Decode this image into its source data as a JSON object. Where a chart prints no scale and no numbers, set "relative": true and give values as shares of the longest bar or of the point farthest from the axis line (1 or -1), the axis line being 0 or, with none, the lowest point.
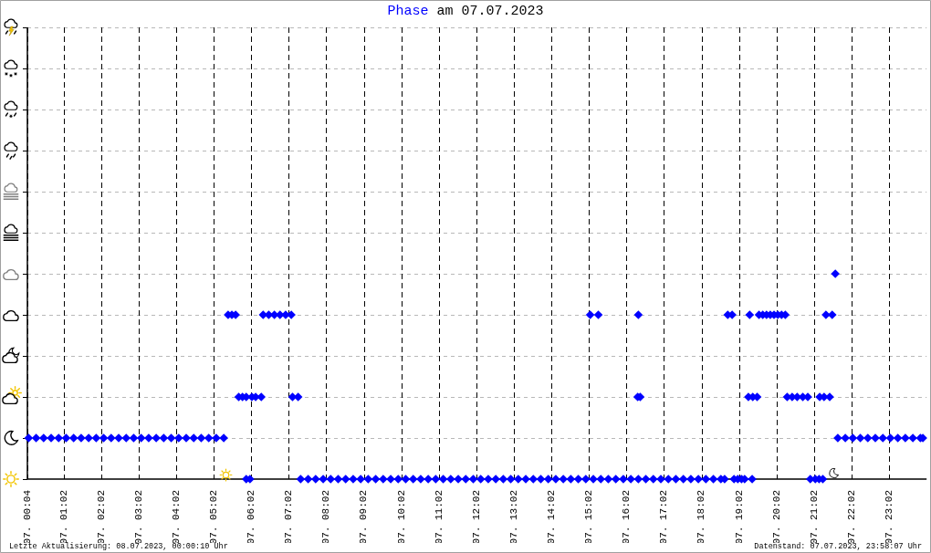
{
  "chart_data": {
    "type": "scatter",
    "title": "Phase am 07.07.2023",
    "annotations": [
      "Letzte Aktualisierung: 08.07.2023, 00:00:10 Uhr",
      "Datenstand: 07.07.2023, 23:58:07 Uhr"
    ],
    "relative": true,
    "color": "#0000ff",
    "marker": "diamond",
    "grid": true,
    "xlim": [
      "2023-07-07T00:04",
      "2023-07-08T00:02"
    ],
    "xticks": [
      {
        "value": "2023-07-07T00:04",
        "label": "07. 00:04"
      },
      {
        "value": "2023-07-07T01:02",
        "label": "07. 01:02"
      },
      {
        "value": "2023-07-07T02:02",
        "label": "07. 02:02"
      },
      {
        "value": "2023-07-07T03:02",
        "label": "07. 03:02"
      },
      {
        "value": "2023-07-07T04:02",
        "label": "07. 04:02"
      },
      {
        "value": "2023-07-07T05:02",
        "label": "07. 05:02"
      },
      {
        "value": "2023-07-07T06:02",
        "label": "07. 06:02"
      },
      {
        "value": "2023-07-07T07:02",
        "label": "07. 07:02"
      },
      {
        "value": "2023-07-07T08:02",
        "label": "07. 08:02"
      },
      {
        "value": "2023-07-07T09:02",
        "label": "07. 09:02"
      },
      {
        "value": "2023-07-07T10:02",
        "label": "07. 10:02"
      },
      {
        "value": "2023-07-07T11:02",
        "label": "07. 11:02"
      },
      {
        "value": "2023-07-07T12:02",
        "label": "07. 12:02"
      },
      {
        "value": "2023-07-07T13:02",
        "label": "07. 13:02"
      },
      {
        "value": "2023-07-07T14:02",
        "label": "07. 14:02"
      },
      {
        "value": "2023-07-07T15:02",
        "label": "07. 15:02"
      },
      {
        "value": "2023-07-07T16:02",
        "label": "07. 16:02"
      },
      {
        "value": "2023-07-07T17:02",
        "label": "07. 17:02"
      },
      {
        "value": "2023-07-07T18:02",
        "label": "07. 18:02"
      },
      {
        "value": "2023-07-07T19:02",
        "label": "07. 19:02"
      },
      {
        "value": "2023-07-07T20:02",
        "label": "07. 20:02"
      },
      {
        "value": "2023-07-07T21:02",
        "label": "07. 21:02"
      },
      {
        "value": "2023-07-07T22:02",
        "label": "07. 22:02"
      },
      {
        "value": "2023-07-07T23:02",
        "label": "07. 23:02"
      }
    ],
    "x": [
      "2023-07-07T00:06",
      "2023-07-07T00:18",
      "2023-07-07T00:30",
      "2023-07-07T00:42",
      "2023-07-07T00:54",
      "2023-07-07T01:06",
      "2023-07-07T01:18",
      "2023-07-07T01:30",
      "2023-07-07T01:42",
      "2023-07-07T01:54",
      "2023-07-07T02:06",
      "2023-07-07T02:18",
      "2023-07-07T02:30",
      "2023-07-07T02:42",
      "2023-07-07T02:54",
      "2023-07-07T03:06",
      "2023-07-07T03:18",
      "2023-07-07T03:30",
      "2023-07-07T03:42",
      "2023-07-07T03:54",
      "2023-07-07T04:06",
      "2023-07-07T04:18",
      "2023-07-07T04:30",
      "2023-07-07T04:42",
      "2023-07-07T04:54",
      "2023-07-07T05:06",
      "2023-07-07T05:18",
      "2023-07-07T05:25",
      "2023-07-07T05:31",
      "2023-07-07T05:37",
      "2023-07-07T05:42",
      "2023-07-07T05:48",
      "2023-07-07T05:54",
      "2023-07-07T05:54",
      "2023-07-07T06:00",
      "2023-07-07T06:03",
      "2023-07-07T06:09",
      "2023-07-07T06:18",
      "2023-07-07T06:21",
      "2023-07-07T06:30",
      "2023-07-07T06:39",
      "2023-07-07T06:48",
      "2023-07-07T06:57",
      "2023-07-07T07:06",
      "2023-07-07T07:08",
      "2023-07-07T07:17",
      "2023-07-07T07:21",
      "2023-07-07T07:33",
      "2023-07-07T07:45",
      "2023-07-07T07:57",
      "2023-07-07T08:09",
      "2023-07-07T08:21",
      "2023-07-07T08:33",
      "2023-07-07T08:45",
      "2023-07-07T08:57",
      "2023-07-07T09:09",
      "2023-07-07T09:21",
      "2023-07-07T09:33",
      "2023-07-07T09:45",
      "2023-07-07T09:57",
      "2023-07-07T10:09",
      "2023-07-07T10:21",
      "2023-07-07T10:33",
      "2023-07-07T10:45",
      "2023-07-07T10:57",
      "2023-07-07T11:09",
      "2023-07-07T11:21",
      "2023-07-07T11:33",
      "2023-07-07T11:45",
      "2023-07-07T11:57",
      "2023-07-07T12:09",
      "2023-07-07T12:21",
      "2023-07-07T12:33",
      "2023-07-07T12:45",
      "2023-07-07T12:57",
      "2023-07-07T13:09",
      "2023-07-07T13:21",
      "2023-07-07T13:33",
      "2023-07-07T13:45",
      "2023-07-07T13:57",
      "2023-07-07T14:09",
      "2023-07-07T14:21",
      "2023-07-07T14:33",
      "2023-07-07T14:45",
      "2023-07-07T14:57",
      "2023-07-07T15:04",
      "2023-07-07T15:09",
      "2023-07-07T15:17",
      "2023-07-07T15:21",
      "2023-07-07T15:33",
      "2023-07-07T15:45",
      "2023-07-07T15:57",
      "2023-07-07T16:09",
      "2023-07-07T16:20",
      "2023-07-07T16:21",
      "2023-07-07T16:21",
      "2023-07-07T16:24",
      "2023-07-07T16:33",
      "2023-07-07T16:45",
      "2023-07-07T16:57",
      "2023-07-07T17:09",
      "2023-07-07T17:21",
      "2023-07-07T17:33",
      "2023-07-07T17:45",
      "2023-07-07T17:57",
      "2023-07-07T18:09",
      "2023-07-07T18:21",
      "2023-07-07T18:33",
      "2023-07-07T18:39",
      "2023-07-07T18:44",
      "2023-07-07T18:51",
      "2023-07-07T18:54",
      "2023-07-07T19:00",
      "2023-07-07T19:06",
      "2023-07-07T19:11",
      "2023-07-07T19:17",
      "2023-07-07T19:19",
      "2023-07-07T19:23",
      "2023-07-07T19:24",
      "2023-07-07T19:31",
      "2023-07-07T19:34",
      "2023-07-07T19:40",
      "2023-07-07T19:46",
      "2023-07-07T19:52",
      "2023-07-07T19:58",
      "2023-07-07T20:04",
      "2023-07-07T20:10",
      "2023-07-07T20:16",
      "2023-07-07T20:19",
      "2023-07-07T20:27",
      "2023-07-07T20:35",
      "2023-07-07T20:44",
      "2023-07-07T20:52",
      "2023-07-07T20:56",
      "2023-07-07T21:04",
      "2023-07-07T21:10",
      "2023-07-07T21:11",
      "2023-07-07T21:16",
      "2023-07-07T21:18",
      "2023-07-07T21:21",
      "2023-07-07T21:27",
      "2023-07-07T21:31",
      "2023-07-07T21:36",
      "2023-07-07T21:40",
      "2023-07-07T21:52",
      "2023-07-07T22:04",
      "2023-07-07T22:16",
      "2023-07-07T22:28",
      "2023-07-07T22:40",
      "2023-07-07T22:52",
      "2023-07-07T23:04",
      "2023-07-07T23:16",
      "2023-07-07T23:28",
      "2023-07-07T23:40",
      "2023-07-07T23:52",
      "2023-07-07T23:56"
    ],
    "values": [
      0.2,
      0.2,
      0.2,
      0.2,
      0.2,
      0.2,
      0.2,
      0.2,
      0.2,
      0.2,
      0.2,
      0.2,
      0.2,
      0.2,
      0.2,
      0.2,
      0.2,
      0.2,
      0.2,
      0.2,
      0.2,
      0.2,
      0.2,
      0.2,
      0.2,
      0.2,
      0.2,
      0.8,
      0.8,
      0.8,
      0.4,
      0.4,
      0.4,
      0,
      0,
      0.4,
      0.4,
      0.4,
      0.8,
      0.8,
      0.8,
      0.8,
      0.8,
      0.8,
      0.4,
      0.4,
      0,
      0,
      0,
      0,
      0,
      0,
      0,
      0,
      0,
      0,
      0,
      0,
      0,
      0,
      0,
      0,
      0,
      0,
      0,
      0,
      0,
      0,
      0,
      0,
      0,
      0,
      0,
      0,
      0,
      0,
      0,
      0,
      0,
      0,
      0,
      0,
      0,
      0,
      0,
      0.8,
      0,
      0.8,
      0,
      0,
      0,
      0,
      0,
      0.4,
      0.8,
      0,
      0.4,
      0,
      0,
      0,
      0,
      0,
      0,
      0,
      0,
      0,
      0,
      0,
      0,
      0.8,
      0.8,
      0,
      0,
      0,
      0,
      0.4,
      0.8,
      0,
      0.4,
      0.4,
      0.8,
      0.8,
      0.8,
      0.8,
      0.8,
      0.8,
      0.8,
      0.8,
      0.4,
      0.4,
      0.4,
      0.4,
      0.4,
      0,
      0,
      0,
      0.4,
      0,
      0.4,
      0.8,
      0.4,
      0.8,
      1,
      0.2,
      0.2,
      0.2,
      0.2,
      0.2,
      0.2,
      0.2,
      0.2,
      0.2,
      0.2,
      0.2,
      0.2,
      0.2
    ]
  }
}
